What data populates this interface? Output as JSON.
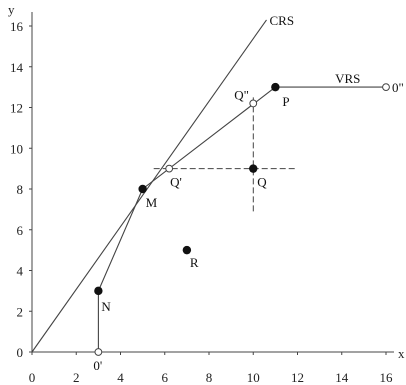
{
  "chart_data": {
    "type": "line",
    "xlabel": "x",
    "ylabel": "y",
    "xlim": [
      0,
      16
    ],
    "ylim": [
      0,
      16
    ],
    "x_ticks": [
      "0",
      "2",
      "4",
      "6",
      "8",
      "10",
      "12",
      "14",
      "16"
    ],
    "y_ticks": [
      "0",
      "2",
      "4",
      "6",
      "8",
      "10",
      "12",
      "14",
      "16"
    ],
    "grid": false,
    "frontiers": [
      {
        "name": "CRS",
        "points": [
          [
            0,
            0
          ],
          [
            10.6,
            16.3
          ]
        ]
      },
      {
        "name": "VRS",
        "points": [
          [
            3,
            0
          ],
          [
            3,
            3
          ],
          [
            5,
            8
          ],
          [
            11,
            13
          ],
          [
            16,
            13
          ]
        ]
      }
    ],
    "dashed_lines": [
      {
        "points": [
          [
            5.5,
            9
          ],
          [
            12,
            9
          ]
        ]
      },
      {
        "points": [
          [
            10,
            6.9
          ],
          [
            10,
            12.5
          ]
        ]
      }
    ],
    "points": [
      {
        "label": "N",
        "x": 3,
        "y": 3,
        "style": "filled"
      },
      {
        "label": "M",
        "x": 5,
        "y": 8,
        "style": "filled"
      },
      {
        "label": "P",
        "x": 11,
        "y": 13,
        "style": "filled"
      },
      {
        "label": "Q",
        "x": 10,
        "y": 9,
        "style": "filled"
      },
      {
        "label": "R",
        "x": 7,
        "y": 5,
        "style": "filled"
      },
      {
        "label": "Q'",
        "x": 6.2,
        "y": 9,
        "style": "open"
      },
      {
        "label": "Q\"",
        "x": 10,
        "y": 12.2,
        "style": "open"
      },
      {
        "label": "0'",
        "x": 3,
        "y": 0,
        "style": "open"
      },
      {
        "label": "0\"",
        "x": 16,
        "y": 13,
        "style": "open"
      }
    ]
  }
}
